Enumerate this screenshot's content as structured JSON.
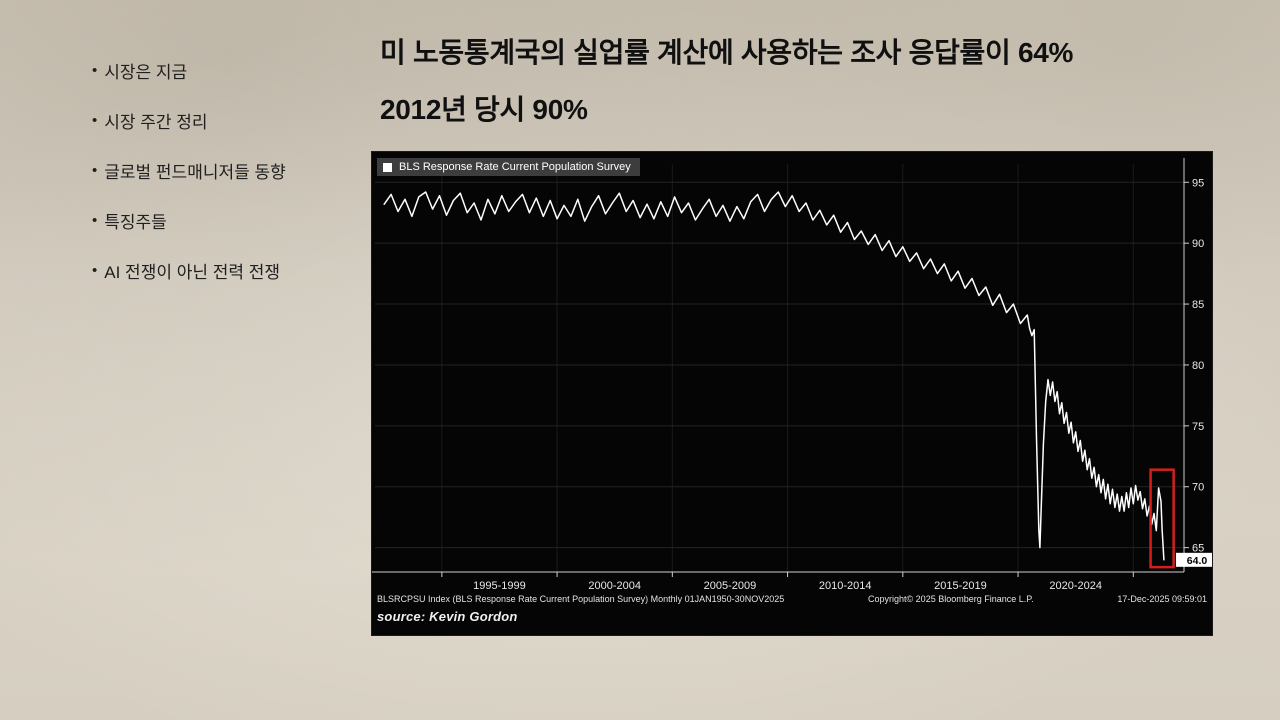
{
  "sidebar": {
    "items": [
      {
        "label": "시장은 지금"
      },
      {
        "label": "시장 주간 정리"
      },
      {
        "label": "글로벌 펀드매니저들 동향"
      },
      {
        "label": "특징주들"
      },
      {
        "label": "AI 전쟁이 아닌 전력 전쟁"
      }
    ]
  },
  "title": {
    "line1": "미 노동통계국의 실업률 계산에 사용하는 조사 응답률이 64%",
    "line2": "2012년 당시 90%"
  },
  "chart": {
    "legend": "BLS Response Rate Current Population Survey",
    "footer_left": "BLSRCPSU Index (BLS Response Rate Current Population Survey) Monthly 01JAN1950-30NOV2025",
    "footer_center": "Copyright© 2025 Bloomberg Finance L.P.",
    "footer_right": "17-Dec-2025 09:59:01",
    "source": "source: Kevin Gordon"
  },
  "chart_data": {
    "type": "line",
    "title": "BLS Response Rate Current Population Survey",
    "xlabel": "",
    "ylabel": "",
    "xlim": [
      1991.6,
      2026.7
    ],
    "ylim": [
      63,
      96.5
    ],
    "yticks": [
      65,
      70,
      75,
      80,
      85,
      90,
      95
    ],
    "x_gridlines": [
      1994.5,
      1999.5,
      2004.5,
      2009.5,
      2014.5,
      2019.5,
      2024.5
    ],
    "xticks": [
      {
        "label": "1995-1999",
        "center": 1997
      },
      {
        "label": "2000-2004",
        "center": 2002
      },
      {
        "label": "2005-2009",
        "center": 2007
      },
      {
        "label": "2010-2014",
        "center": 2012
      },
      {
        "label": "2015-2019",
        "center": 2017
      },
      {
        "label": "2020-2024",
        "center": 2022
      }
    ],
    "grid": "faint-horizontal",
    "legend_position": "top-left",
    "line_color": "#ffffff",
    "background": "#050505",
    "highlight_color": "#d41f1f",
    "highlight_box": {
      "x0": 2025.25,
      "x1": 2026.25,
      "y0": 63.4,
      "y1": 71.4
    },
    "last_point": [
      2025.83,
      64.0
    ],
    "last_label": "64.0",
    "series": [
      {
        "name": "BLS Response Rate Current Population Survey",
        "points": [
          [
            1992.0,
            93.2
          ],
          [
            1992.3,
            94.0
          ],
          [
            1992.6,
            92.6
          ],
          [
            1992.9,
            93.6
          ],
          [
            1993.2,
            92.2
          ],
          [
            1993.5,
            93.8
          ],
          [
            1993.8,
            94.2
          ],
          [
            1994.1,
            92.8
          ],
          [
            1994.4,
            93.9
          ],
          [
            1994.7,
            92.3
          ],
          [
            1995.0,
            93.5
          ],
          [
            1995.3,
            94.1
          ],
          [
            1995.6,
            92.5
          ],
          [
            1995.9,
            93.3
          ],
          [
            1996.2,
            91.9
          ],
          [
            1996.5,
            93.6
          ],
          [
            1996.8,
            92.4
          ],
          [
            1997.1,
            93.9
          ],
          [
            1997.4,
            92.6
          ],
          [
            1997.7,
            93.4
          ],
          [
            1998.0,
            94.0
          ],
          [
            1998.3,
            92.5
          ],
          [
            1998.6,
            93.7
          ],
          [
            1998.9,
            92.2
          ],
          [
            1999.2,
            93.5
          ],
          [
            1999.5,
            92.0
          ],
          [
            1999.8,
            93.1
          ],
          [
            2000.1,
            92.2
          ],
          [
            2000.4,
            93.6
          ],
          [
            2000.7,
            91.8
          ],
          [
            2001.0,
            93.0
          ],
          [
            2001.3,
            93.9
          ],
          [
            2001.6,
            92.4
          ],
          [
            2001.9,
            93.3
          ],
          [
            2002.2,
            94.1
          ],
          [
            2002.5,
            92.6
          ],
          [
            2002.8,
            93.5
          ],
          [
            2003.1,
            92.1
          ],
          [
            2003.4,
            93.2
          ],
          [
            2003.7,
            92.0
          ],
          [
            2004.0,
            93.4
          ],
          [
            2004.3,
            92.2
          ],
          [
            2004.6,
            93.8
          ],
          [
            2004.9,
            92.5
          ],
          [
            2005.2,
            93.3
          ],
          [
            2005.5,
            91.9
          ],
          [
            2005.8,
            92.8
          ],
          [
            2006.1,
            93.6
          ],
          [
            2006.4,
            92.2
          ],
          [
            2006.7,
            93.1
          ],
          [
            2007.0,
            91.8
          ],
          [
            2007.3,
            93.0
          ],
          [
            2007.6,
            92.0
          ],
          [
            2007.9,
            93.4
          ],
          [
            2008.2,
            94.0
          ],
          [
            2008.5,
            92.6
          ],
          [
            2008.8,
            93.6
          ],
          [
            2009.1,
            94.2
          ],
          [
            2009.4,
            93.0
          ],
          [
            2009.7,
            93.9
          ],
          [
            2010.0,
            92.6
          ],
          [
            2010.3,
            93.3
          ],
          [
            2010.6,
            91.9
          ],
          [
            2010.9,
            92.7
          ],
          [
            2011.2,
            91.5
          ],
          [
            2011.5,
            92.3
          ],
          [
            2011.8,
            90.9
          ],
          [
            2012.1,
            91.7
          ],
          [
            2012.4,
            90.3
          ],
          [
            2012.7,
            91.0
          ],
          [
            2013.0,
            89.9
          ],
          [
            2013.3,
            90.7
          ],
          [
            2013.6,
            89.4
          ],
          [
            2013.9,
            90.2
          ],
          [
            2014.2,
            88.9
          ],
          [
            2014.5,
            89.7
          ],
          [
            2014.8,
            88.5
          ],
          [
            2015.1,
            89.2
          ],
          [
            2015.4,
            87.9
          ],
          [
            2015.7,
            88.7
          ],
          [
            2016.0,
            87.5
          ],
          [
            2016.3,
            88.3
          ],
          [
            2016.6,
            86.9
          ],
          [
            2016.9,
            87.7
          ],
          [
            2017.2,
            86.3
          ],
          [
            2017.5,
            87.1
          ],
          [
            2017.8,
            85.7
          ],
          [
            2018.1,
            86.4
          ],
          [
            2018.4,
            84.9
          ],
          [
            2018.7,
            85.8
          ],
          [
            2019.0,
            84.3
          ],
          [
            2019.3,
            85.0
          ],
          [
            2019.6,
            83.4
          ],
          [
            2019.9,
            84.1
          ],
          [
            2020.0,
            83.0
          ],
          [
            2020.1,
            82.4
          ],
          [
            2020.2,
            82.9
          ],
          [
            2020.3,
            74.0
          ],
          [
            2020.4,
            66.5
          ],
          [
            2020.45,
            65.0
          ],
          [
            2020.5,
            68.0
          ],
          [
            2020.6,
            73.5
          ],
          [
            2020.7,
            77.0
          ],
          [
            2020.8,
            78.8
          ],
          [
            2020.9,
            77.5
          ],
          [
            2021.0,
            78.6
          ],
          [
            2021.1,
            77.0
          ],
          [
            2021.2,
            77.8
          ],
          [
            2021.3,
            76.0
          ],
          [
            2021.4,
            76.9
          ],
          [
            2021.5,
            75.2
          ],
          [
            2021.6,
            76.1
          ],
          [
            2021.7,
            74.4
          ],
          [
            2021.8,
            75.3
          ],
          [
            2021.9,
            73.6
          ],
          [
            2022.0,
            74.5
          ],
          [
            2022.1,
            72.9
          ],
          [
            2022.2,
            73.8
          ],
          [
            2022.3,
            72.1
          ],
          [
            2022.4,
            73.0
          ],
          [
            2022.5,
            71.4
          ],
          [
            2022.6,
            72.3
          ],
          [
            2022.7,
            70.7
          ],
          [
            2022.8,
            71.6
          ],
          [
            2022.9,
            70.0
          ],
          [
            2023.0,
            71.0
          ],
          [
            2023.1,
            69.5
          ],
          [
            2023.2,
            70.6
          ],
          [
            2023.3,
            69.0
          ],
          [
            2023.4,
            70.2
          ],
          [
            2023.5,
            68.6
          ],
          [
            2023.6,
            69.8
          ],
          [
            2023.7,
            68.3
          ],
          [
            2023.8,
            69.4
          ],
          [
            2023.9,
            68.0
          ],
          [
            2024.0,
            69.2
          ],
          [
            2024.1,
            68.0
          ],
          [
            2024.2,
            69.5
          ],
          [
            2024.3,
            68.3
          ],
          [
            2024.4,
            69.9
          ],
          [
            2024.5,
            68.6
          ],
          [
            2024.6,
            70.1
          ],
          [
            2024.7,
            68.9
          ],
          [
            2024.8,
            69.6
          ],
          [
            2024.9,
            68.2
          ],
          [
            2025.0,
            69.0
          ],
          [
            2025.1,
            67.6
          ],
          [
            2025.2,
            68.4
          ],
          [
            2025.3,
            66.9
          ],
          [
            2025.4,
            67.8
          ],
          [
            2025.5,
            66.4
          ],
          [
            2025.6,
            69.9
          ],
          [
            2025.7,
            68.8
          ],
          [
            2025.75,
            66.5
          ],
          [
            2025.83,
            64.0
          ]
        ]
      }
    ]
  }
}
